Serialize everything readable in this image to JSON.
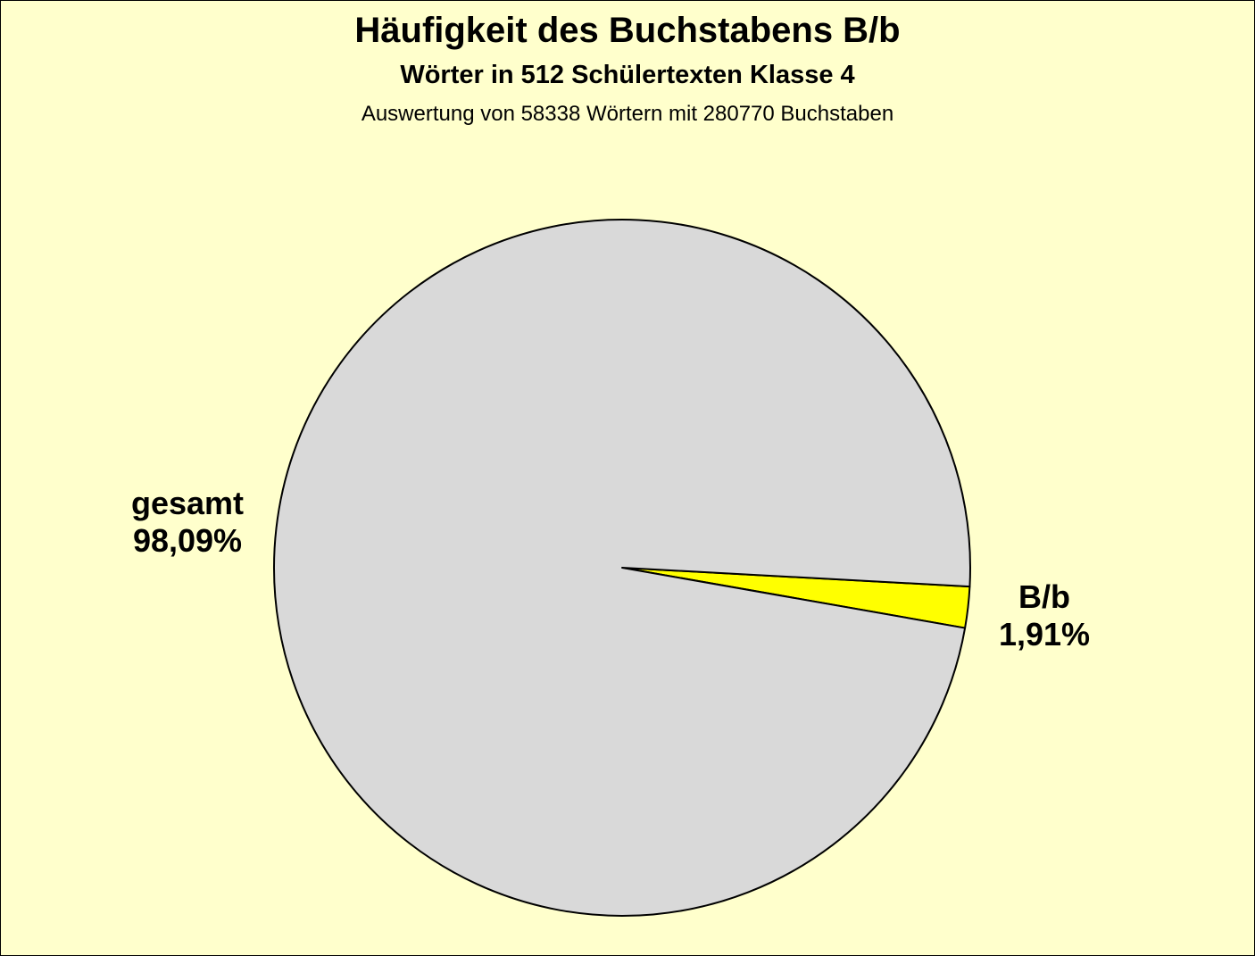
{
  "chart_data": {
    "type": "pie",
    "title": "Häufigkeit des Buchstabens B/b",
    "subtitle": "Wörter in 512 Schülertexten Klasse 4",
    "subtitle2": "Auswertung von 58338 Wörtern mit 280770 Buchstaben",
    "slices": [
      {
        "label": "B/b",
        "value": 1.91,
        "value_label": "1,91%",
        "color": "#ffff00"
      },
      {
        "label": "gesamt",
        "value": 98.09,
        "value_label": "98,09%",
        "color": "#d9d9d9"
      }
    ],
    "background": "#ffffcc"
  }
}
